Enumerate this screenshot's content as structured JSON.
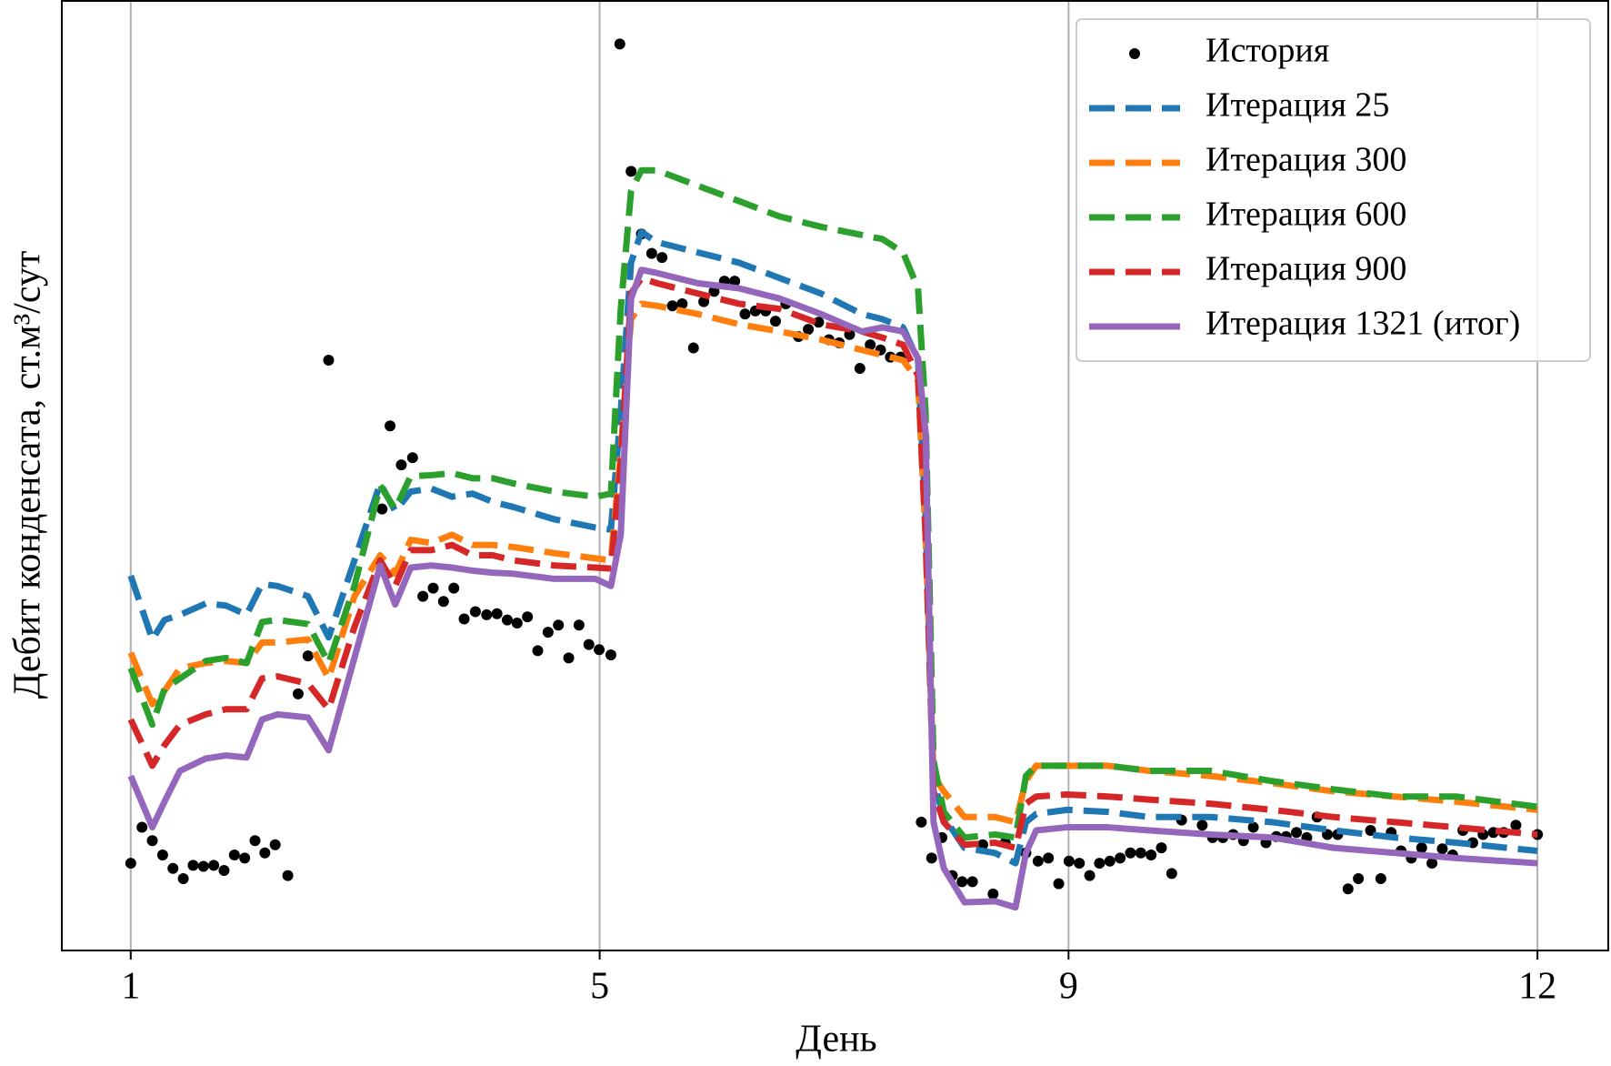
{
  "chart_data": {
    "type": "line",
    "xlabel": "День",
    "ylabel": "Дебит конденсата, ст.м³/сут",
    "xlim": [
      -0.147,
      3.151
    ],
    "ylim": [
      0,
      925
    ],
    "xticks": [
      {
        "value": 0,
        "label": "1"
      },
      {
        "value": 1,
        "label": "5"
      },
      {
        "value": 2,
        "label": "9"
      },
      {
        "value": 3,
        "label": "12"
      }
    ],
    "grid": "x",
    "legend": "upper right",
    "x": [
      0,
      0.046,
      0.072,
      0.105,
      0.16,
      0.203,
      0.247,
      0.28,
      0.313,
      0.378,
      0.422,
      0.477,
      0.532,
      0.564,
      0.597,
      0.641,
      0.685,
      0.729,
      0.772,
      0.816,
      0.904,
      0.991,
      1.024,
      1.045,
      1.067,
      1.089,
      1.122,
      1.209,
      1.297,
      1.384,
      1.472,
      1.559,
      1.603,
      1.647,
      1.679,
      1.695,
      1.712,
      1.734,
      1.778,
      1.843,
      1.887,
      1.909,
      1.931,
      1.997,
      2.084,
      2.172,
      2.303,
      2.434,
      2.565,
      2.696,
      2.827,
      3.0
    ],
    "series": [
      {
        "name": "История",
        "type": "scatter",
        "color": "#000000",
        "x": [
          0,
          0.024,
          0.046,
          0.068,
          0.09,
          0.112,
          0.133,
          0.155,
          0.177,
          0.199,
          0.221,
          0.243,
          0.265,
          0.286,
          0.308,
          0.335,
          0.357,
          0.378,
          0.422,
          0.536,
          0.553,
          0.577,
          0.601,
          0.623,
          0.645,
          0.667,
          0.689,
          0.711,
          0.735,
          0.759,
          0.781,
          0.803,
          0.824,
          0.846,
          0.868,
          0.89,
          0.912,
          0.934,
          0.956,
          0.977,
          0.999,
          1.024,
          1.043,
          1.067,
          1.089,
          1.111,
          1.133,
          1.155,
          1.176,
          1.2,
          1.222,
          1.244,
          1.266,
          1.288,
          1.31,
          1.332,
          1.354,
          1.375,
          1.397,
          1.424,
          1.445,
          1.467,
          1.489,
          1.511,
          1.533,
          1.555,
          1.577,
          1.599,
          1.62,
          1.642,
          1.686,
          1.708,
          1.73,
          1.752,
          1.773,
          1.795,
          1.817,
          1.839,
          1.865,
          1.909,
          1.935,
          1.957,
          1.979,
          2.001,
          2.023,
          2.045,
          2.066,
          2.088,
          2.11,
          2.132,
          2.154,
          2.176,
          2.198,
          2.22,
          2.241,
          2.285,
          2.307,
          2.329,
          2.351,
          2.373,
          2.394,
          2.421,
          2.443,
          2.464,
          2.486,
          2.508,
          2.53,
          2.552,
          2.574,
          2.596,
          2.618,
          2.644,
          2.666,
          2.688,
          2.709,
          2.731,
          2.753,
          2.775,
          2.797,
          2.819,
          2.841,
          2.862,
          2.884,
          2.906,
          2.928,
          2.954,
          3.0
        ],
        "values": [
          85,
          120,
          107,
          93,
          80,
          70,
          83,
          82,
          83,
          78,
          93,
          90,
          107,
          95,
          103,
          73,
          250,
          287,
          575,
          430,
          511,
          473,
          480,
          345,
          353,
          340,
          353,
          323,
          330,
          327,
          328,
          322,
          319,
          325,
          292,
          310,
          317,
          285,
          317,
          298,
          293,
          288,
          883,
          759,
          698,
          679,
          675,
          628,
          630,
          587,
          632,
          642,
          652,
          652,
          620,
          623,
          623,
          613,
          630,
          598,
          605,
          612,
          595,
          592,
          600,
          567,
          590,
          585,
          578,
          578,
          125,
          90,
          110,
          73,
          67,
          67,
          103,
          55,
          105,
          95,
          87,
          90,
          65,
          87,
          85,
          73,
          85,
          87,
          90,
          95,
          95,
          93,
          100,
          75,
          127,
          122,
          110,
          110,
          113,
          107,
          120,
          105,
          111,
          111,
          115,
          110,
          130,
          113,
          113,
          60,
          70,
          117,
          70,
          115,
          97,
          90,
          100,
          85,
          99,
          93,
          117,
          105,
          113,
          115,
          115,
          122,
          113
        ]
      },
      {
        "name": "Итерация 25",
        "color": "#1f77b4",
        "linestyle": "dashed",
        "values": [
          365,
          303,
          322,
          327,
          338,
          336,
          327,
          357,
          355,
          345,
          305,
          380,
          455,
          428,
          447,
          450,
          442,
          445,
          437,
          432,
          420,
          412,
          410,
          525,
          670,
          700,
          690,
          680,
          670,
          655,
          640,
          620,
          615,
          607,
          575,
          425,
          165,
          130,
          100,
          95,
          85,
          125,
          133,
          137,
          135,
          130,
          130,
          125,
          117,
          110,
          105,
          97
        ]
      },
      {
        "name": "Итерация 300",
        "color": "#ff7f0e",
        "linestyle": "dashed",
        "values": [
          290,
          240,
          253,
          275,
          280,
          282,
          280,
          300,
          300,
          303,
          265,
          345,
          385,
          367,
          400,
          397,
          405,
          395,
          395,
          393,
          387,
          382,
          380,
          485,
          615,
          630,
          628,
          620,
          610,
          603,
          595,
          585,
          580,
          575,
          555,
          405,
          170,
          155,
          130,
          130,
          125,
          165,
          180,
          180,
          180,
          175,
          170,
          163,
          155,
          150,
          145,
          137
        ]
      },
      {
        "name": "Итерация 600",
        "color": "#2ca02c",
        "linestyle": "dashed",
        "values": [
          275,
          220,
          255,
          265,
          282,
          285,
          280,
          320,
          322,
          318,
          280,
          355,
          453,
          430,
          462,
          463,
          465,
          460,
          460,
          455,
          447,
          442,
          445,
          625,
          740,
          760,
          760,
          745,
          730,
          715,
          705,
          697,
          693,
          680,
          645,
          525,
          185,
          135,
          110,
          113,
          110,
          170,
          180,
          180,
          180,
          175,
          175,
          165,
          157,
          150,
          150,
          140
        ]
      },
      {
        "name": "Итерация 900",
        "color": "#d62728",
        "linestyle": "dashed",
        "values": [
          225,
          180,
          200,
          220,
          230,
          235,
          235,
          265,
          267,
          260,
          235,
          315,
          380,
          355,
          390,
          390,
          395,
          385,
          385,
          380,
          375,
          373,
          372,
          475,
          640,
          655,
          650,
          640,
          630,
          625,
          610,
          603,
          597,
          590,
          560,
          405,
          155,
          125,
          103,
          105,
          100,
          143,
          150,
          152,
          150,
          147,
          143,
          137,
          130,
          125,
          120,
          113
        ]
      },
      {
        "name": "Итерация 1321 (итог)",
        "color": "#9467bd",
        "linestyle": "solid",
        "values": [
          170,
          120,
          145,
          175,
          187,
          190,
          188,
          225,
          230,
          227,
          195,
          285,
          375,
          337,
          373,
          375,
          373,
          370,
          368,
          367,
          362,
          362,
          355,
          405,
          635,
          663,
          660,
          650,
          645,
          635,
          620,
          603,
          607,
          603,
          577,
          505,
          125,
          80,
          47,
          48,
          42,
          95,
          117,
          120,
          120,
          117,
          113,
          110,
          100,
          95,
          90,
          85
        ]
      }
    ]
  }
}
